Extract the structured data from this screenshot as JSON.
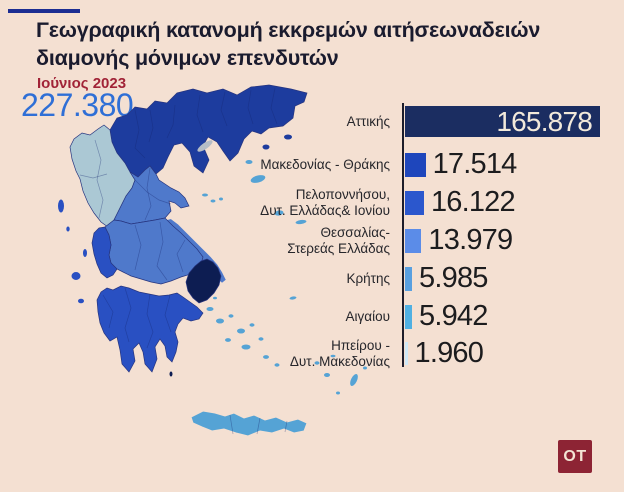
{
  "theme": {
    "bg": "#f4e0d2",
    "title": "#1a1b2e",
    "date": "#a12337",
    "total": "#2f6fd6",
    "accent_line": "#1c2d92",
    "axis": "#1d1d2b",
    "value_text": "#1c1c1e",
    "bar1_text": "#f2e9da",
    "logo_bg": "#8d2434",
    "logo_text": "#f3e4d4",
    "map_dark": "#1d3c9e",
    "map_light": "#abc8d4",
    "map_mid": "#4f79cb",
    "map_royal": "#2950c2",
    "map_attica": "#0d1d52",
    "map_sky": "#55a3d5",
    "map_lake": "#b6bdc6",
    "map_border": "#27357f"
  },
  "header": {
    "title_line1": "Γεωγραφική κατανομή εκκρεμών αιτήσεων",
    "title_line2": "αδειών διαμονής μόνιμων επενδυτών",
    "date": "Ιούνιος 2023"
  },
  "total": {
    "label": "227.380",
    "value": 227380
  },
  "chart_data": {
    "type": "bar",
    "orientation": "horizontal",
    "title": "Γεωγραφική κατανομή εκκρεμών αιτήσεων αδειών διαμονής μόνιμων επενδυτών",
    "subtitle": "Ιούνιος 2023",
    "total_label": "227.380",
    "total_value": 227380,
    "categories": [
      "Αττικής",
      "Μακεδονίας - Θράκης",
      "Πελοποννήσου, Δυτ. Ελλάδας & Ιονίου",
      "Θεσσαλίας - Στερεάς Ελλάδας",
      "Κρήτης",
      "Αιγαίου",
      "Ηπείρου - Δυτ. Μακεδονίας"
    ],
    "values": [
      165878,
      17514,
      16122,
      13979,
      5985,
      5942,
      1960
    ],
    "value_labels": [
      "165.878",
      "17.514",
      "16.122",
      "13.979",
      "5.985",
      "5.942",
      "1.960"
    ],
    "bar_colors": [
      "#1b2d61",
      "#1e46bc",
      "#2b57cd",
      "#5b8ce8",
      "#59a0e0",
      "#50b0e2",
      "#cfe9f8"
    ],
    "xlim": [
      0,
      165878
    ],
    "grid": false,
    "legend": false,
    "bars": [
      {
        "label_line1": "Αττικής",
        "label_line2": "",
        "value": 165878,
        "value_label": "165.878",
        "color": "#1b2d61"
      },
      {
        "label_line1": "Μακεδονίας - Θράκης",
        "label_line2": "",
        "value": 17514,
        "value_label": "17.514",
        "color": "#1e46bc"
      },
      {
        "label_line1": "Πελοποννήσου,",
        "label_line2": "Δυτ. Ελλάδας& Ιονίου",
        "value": 16122,
        "value_label": "16.122",
        "color": "#2b57cd"
      },
      {
        "label_line1": "Θεσσαλίας-",
        "label_line2": "Στερεάς Ελλάδας",
        "value": 13979,
        "value_label": "13.979",
        "color": "#5b8ce8"
      },
      {
        "label_line1": "Κρήτης",
        "label_line2": "",
        "value": 5985,
        "value_label": "5.985",
        "color": "#59a0e0"
      },
      {
        "label_line1": "Αιγαίου",
        "label_line2": "",
        "value": 5942,
        "value_label": "5.942",
        "color": "#50b0e2"
      },
      {
        "label_line1": "Ηπείρου -",
        "label_line2": "Δυτ. Μακεδονίας",
        "value": 1960,
        "value_label": "1.960",
        "color": "#cfe9f8"
      }
    ]
  },
  "map": {
    "regions": [
      {
        "name": "Μακεδονίας - Θράκης",
        "color": "#1d3c9e"
      },
      {
        "name": "Ηπείρου - Δυτ. Μακεδονίας",
        "color": "#abc8d4"
      },
      {
        "name": "Θεσσαλίας - Στερεάς Ελλάδας",
        "color": "#4f79cb"
      },
      {
        "name": "Πελοποννήσου, Δυτ. Ελλάδας & Ιονίου",
        "color": "#2950c2"
      },
      {
        "name": "Αττικής",
        "color": "#0d1d52"
      },
      {
        "name": "Αιγαίου",
        "color": "#55a3d5"
      },
      {
        "name": "Κρήτης",
        "color": "#55a3d5"
      }
    ]
  },
  "footer": {
    "logo_text": "OT"
  }
}
